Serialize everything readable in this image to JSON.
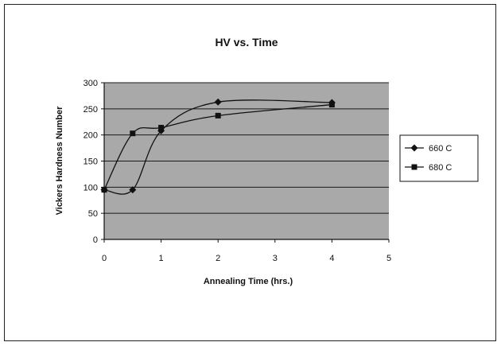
{
  "chart_data": {
    "type": "line",
    "title": "HV vs. Time",
    "xlabel": "Annealing Time (hrs.)",
    "ylabel": "Vickers Hardness Number",
    "xlim": [
      0,
      5
    ],
    "ylim": [
      0,
      300
    ],
    "xticks": [
      "0",
      "1",
      "2",
      "3",
      "4",
      "5"
    ],
    "yticks": [
      "0",
      "50",
      "100",
      "150",
      "200",
      "250",
      "300"
    ],
    "grid": "horizontal",
    "legend_position": "right",
    "plot_background": "#a9a9a9",
    "series": [
      {
        "name": "660 C",
        "marker": "diamond",
        "color": "#111111",
        "x": [
          0,
          0.5,
          1,
          2,
          4
        ],
        "y": [
          95,
          95,
          208,
          263,
          262
        ]
      },
      {
        "name": "680 C",
        "marker": "square",
        "color": "#111111",
        "x": [
          0,
          0.5,
          1,
          2,
          4
        ],
        "y": [
          95,
          203,
          214,
          237,
          258
        ]
      }
    ]
  }
}
